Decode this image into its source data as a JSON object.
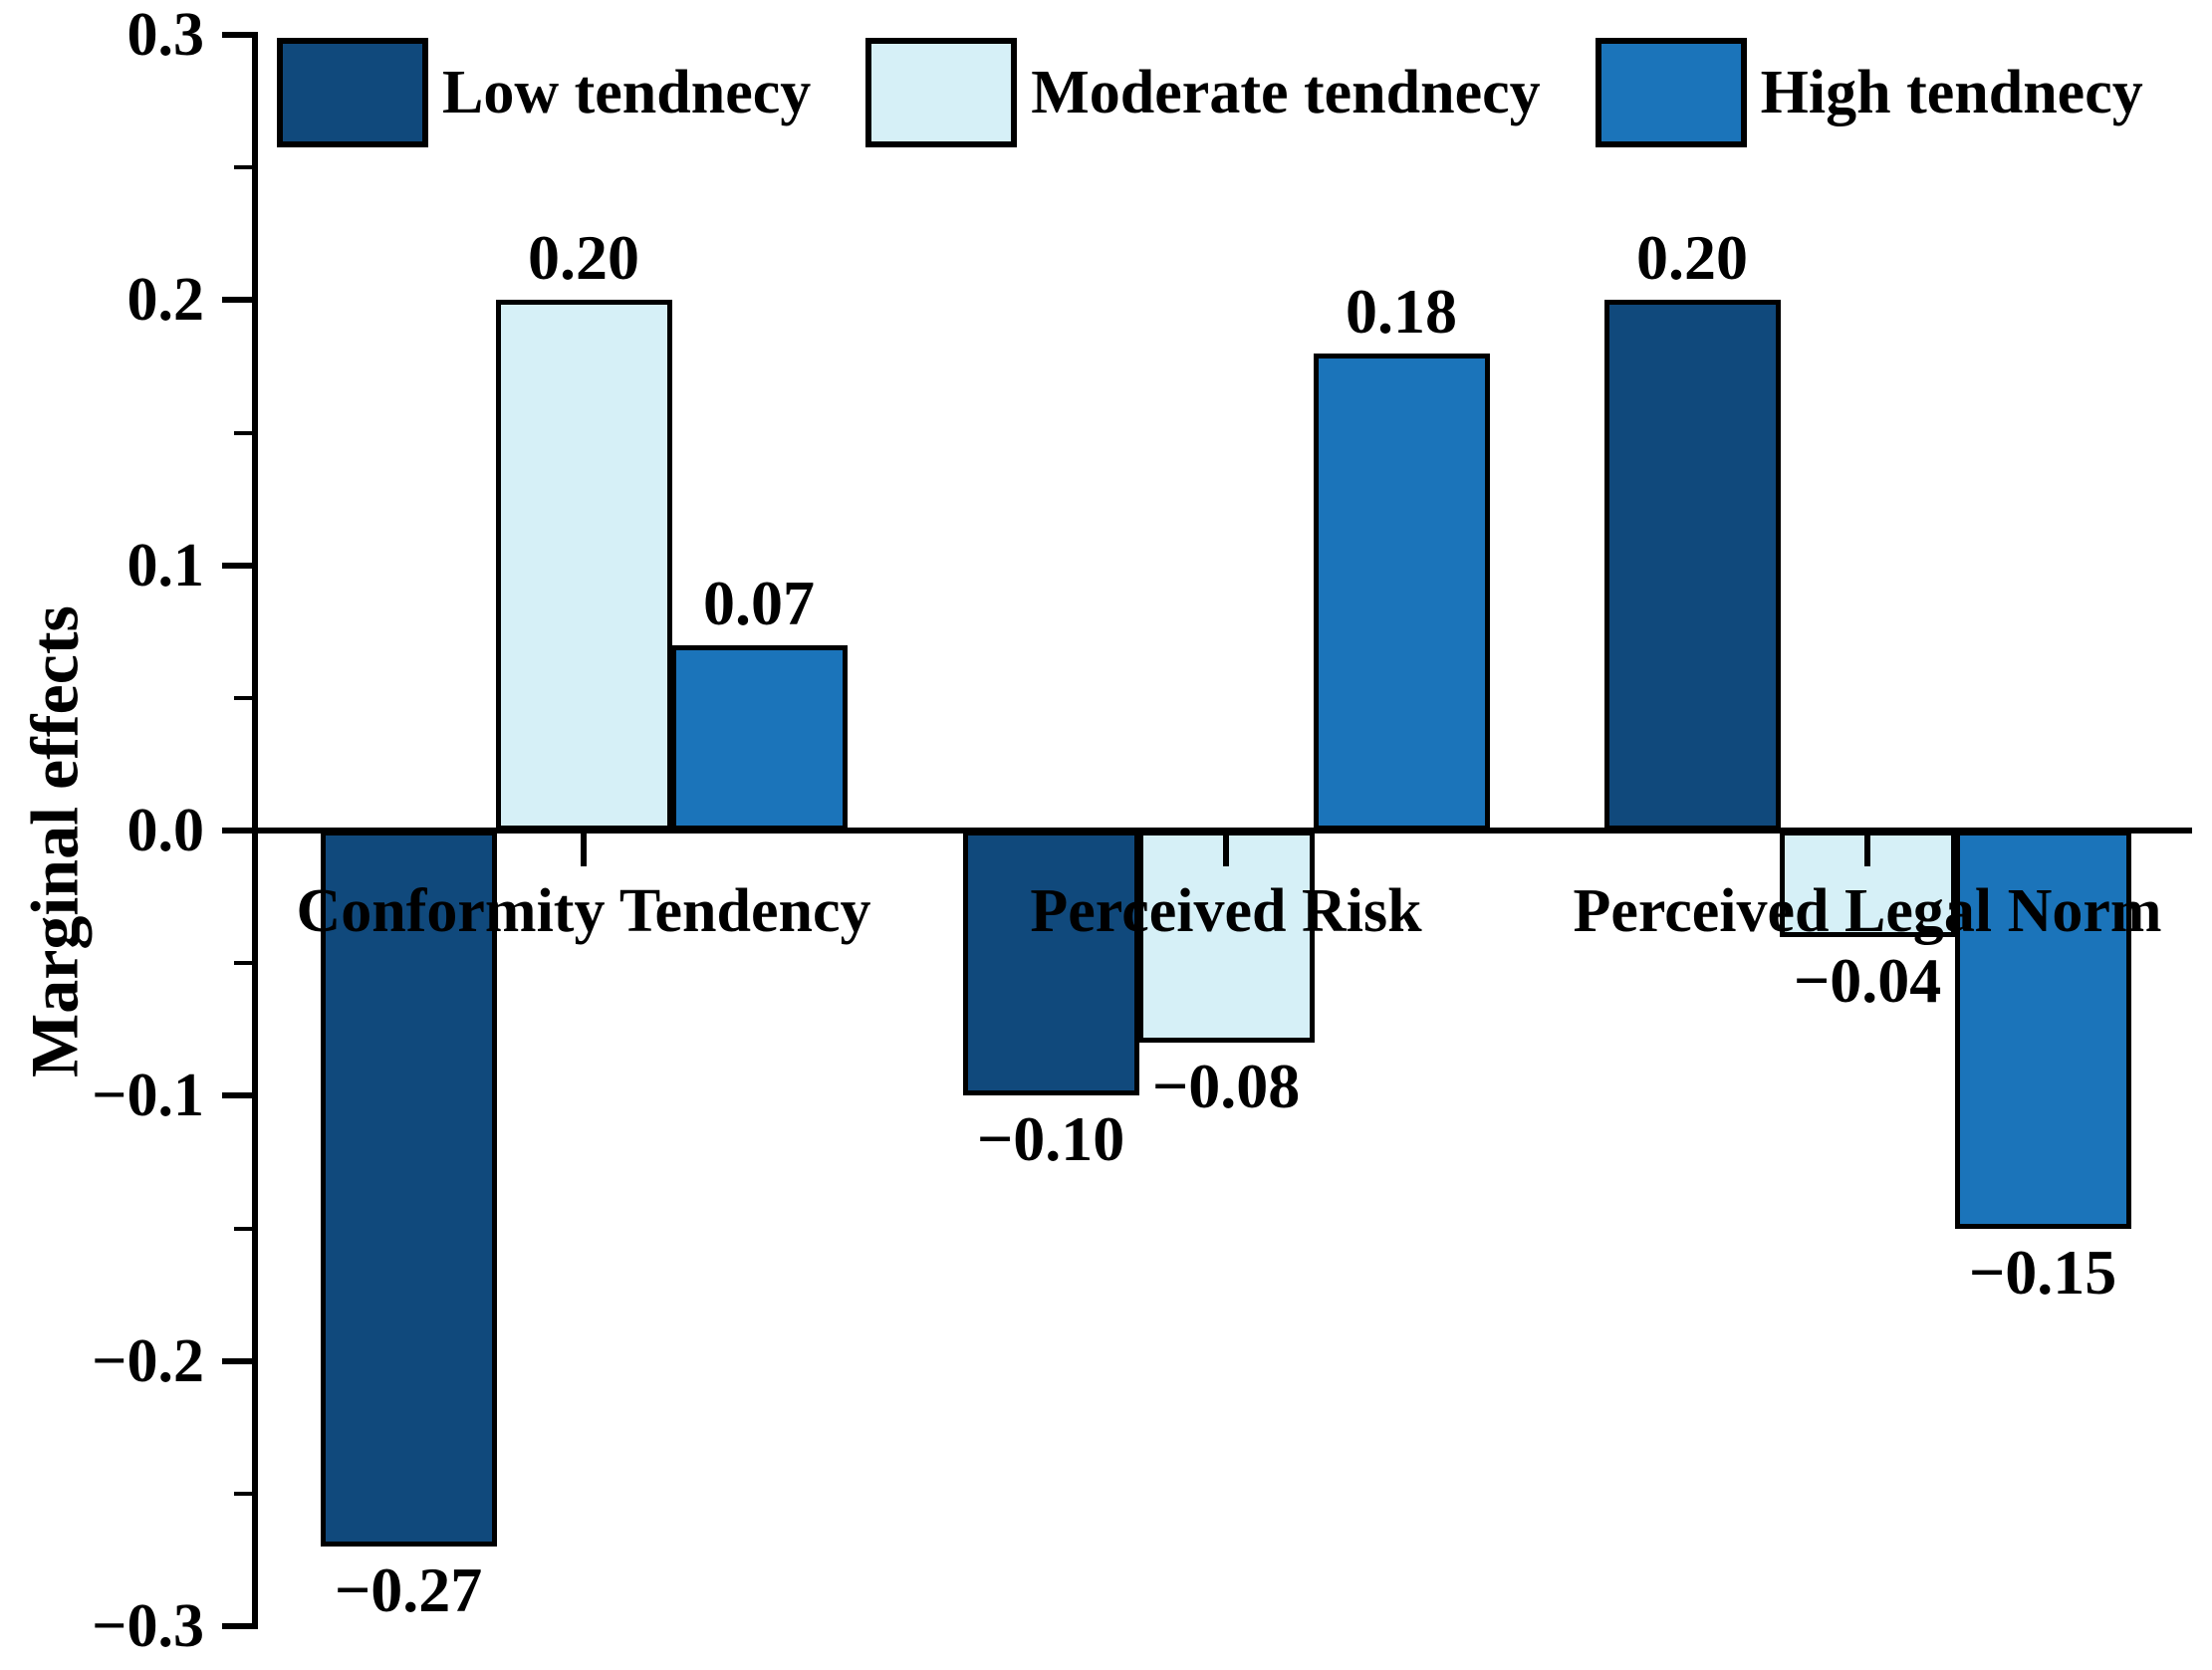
{
  "chart_data": {
    "type": "bar",
    "title": "",
    "xlabel": "",
    "ylabel": "Marginal effects",
    "background": "#ffffff",
    "grid": false,
    "legend_position": "top",
    "bar_edge_color": "#000000",
    "ylim": [
      -0.3,
      0.3
    ],
    "categories": [
      "Conformity Tendency",
      "Perceived Risk",
      "Perceived Legal Norm"
    ],
    "series": [
      {
        "name": "Low tendnecy",
        "color": "#10497C",
        "values": [
          -0.27,
          -0.1,
          0.2
        ],
        "labels": [
          "−0.27",
          "−0.10",
          "0.20"
        ]
      },
      {
        "name": "Moderate tendnecy",
        "color": "#D6F0F7",
        "values": [
          0.2,
          -0.08,
          -0.04
        ],
        "labels": [
          "0.20",
          "−0.08",
          "−0.04"
        ]
      },
      {
        "name": "High tendnecy",
        "color": "#1B74BA",
        "values": [
          0.07,
          0.18,
          -0.15
        ],
        "labels": [
          "0.07",
          "0.18",
          "−0.15"
        ]
      }
    ],
    "yticks": {
      "major": [
        {
          "value": 0.3,
          "label": "0.3"
        },
        {
          "value": 0.2,
          "label": "0.2"
        },
        {
          "value": 0.1,
          "label": "0.1"
        },
        {
          "value": 0.0,
          "label": "0.0"
        },
        {
          "value": -0.1,
          "label": "−0.1"
        },
        {
          "value": -0.2,
          "label": "−0.2"
        },
        {
          "value": -0.3,
          "label": "−0.3"
        }
      ],
      "minor": [
        0.25,
        0.15,
        0.05,
        -0.05,
        -0.15,
        -0.25
      ]
    }
  }
}
